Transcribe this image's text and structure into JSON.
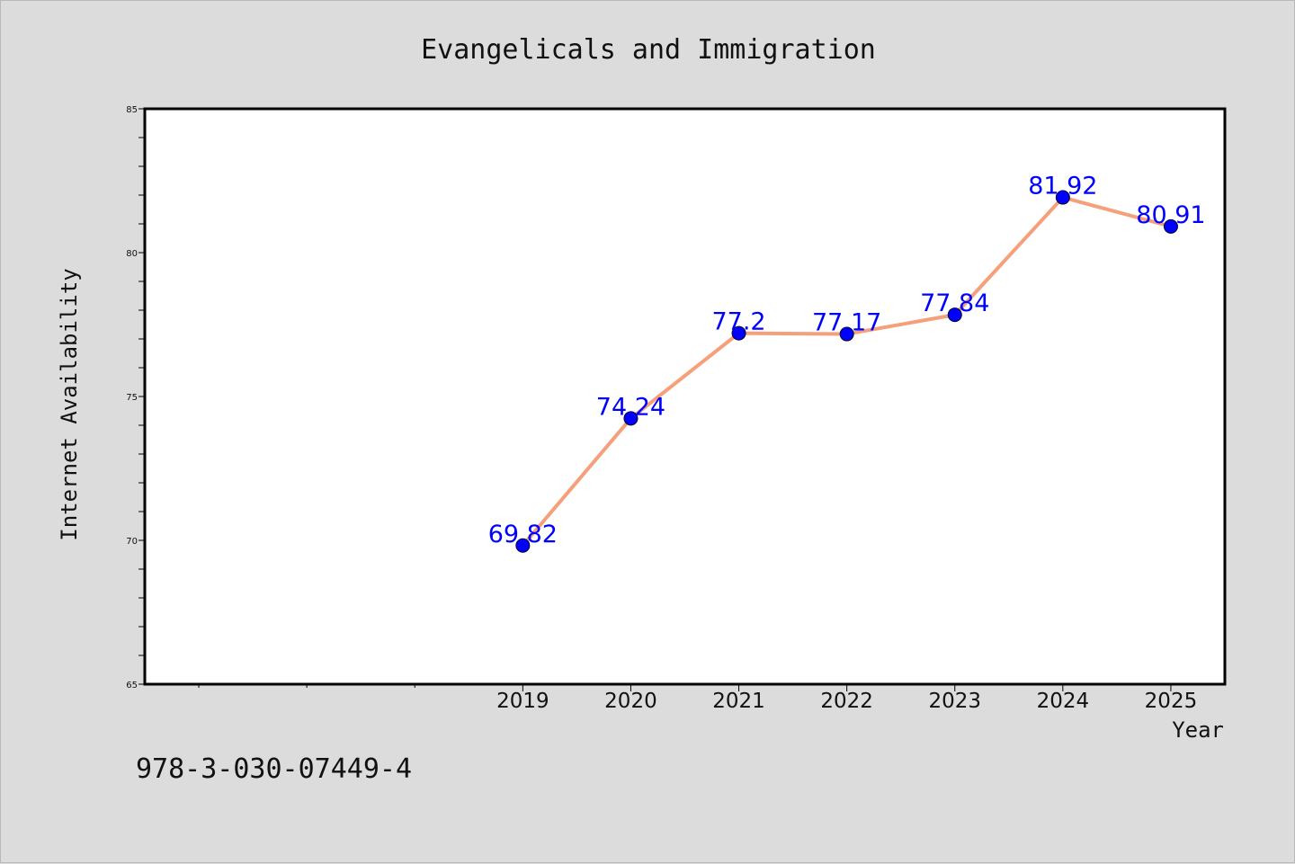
{
  "chart_data": {
    "type": "line",
    "title": "Evangelicals and Immigration",
    "xlabel": "Year",
    "ylabel": "Internet Availability",
    "categories": [
      "2019",
      "2020",
      "2021",
      "2022",
      "2023",
      "2024",
      "2025"
    ],
    "series": [
      {
        "values": [
          69.82,
          74.24,
          77.2,
          77.17,
          77.84,
          81.92,
          80.91
        ]
      }
    ],
    "data_labels": [
      "69.82",
      "74.24",
      "77.2",
      "77.17",
      "77.84",
      "81.92",
      "80.91"
    ],
    "ylim": [
      65,
      85
    ],
    "yticks": [
      "65",
      "70",
      "75",
      "80",
      "85"
    ],
    "x_range_slots": [
      2015.5,
      2025.5
    ],
    "grid": false,
    "legend": "none",
    "line_color": "#f5a07a",
    "marker_color": "#0000ff",
    "label_color": "#0000ff",
    "plot_background": "#ffffff",
    "figure_background": "#dcdcdc"
  },
  "footnote": "978-3-030-07449-4"
}
